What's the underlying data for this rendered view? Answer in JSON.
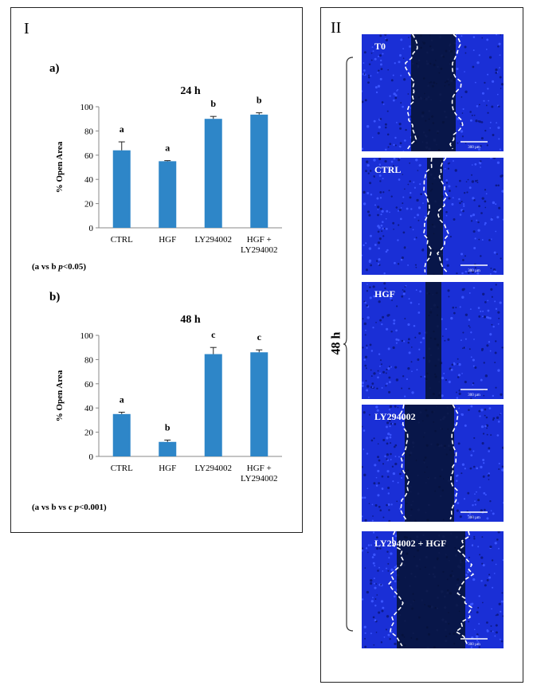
{
  "panel_I": {
    "label": "I",
    "sub_a": "a)",
    "sub_b": "b)",
    "note_a_prefix": "(a vs b ",
    "note_a_p": "p",
    "note_a_suffix": "<0.05)",
    "note_b_prefix": "(a vs b vs c ",
    "note_b_p": "p",
    "note_b_suffix": "<0.001)"
  },
  "panel_II": {
    "label": "II",
    "bracket_label": "48 h",
    "images": [
      {
        "label": "T0",
        "scale_text": "300 µm"
      },
      {
        "label": "CTRL",
        "scale_text": "300 µm"
      },
      {
        "label": "HGF",
        "scale_text": "300 µm"
      },
      {
        "label": "LY294002",
        "scale_text": "300 µm"
      },
      {
        "label": "LY294002 + HGF",
        "scale_text": "300 µm"
      }
    ]
  },
  "colors": {
    "bar": "#2e86c8",
    "micro_bg": "#1a2fd6",
    "micro_dark": "#061230"
  },
  "chart_data": [
    {
      "type": "bar",
      "title": "24 h",
      "ylabel": "% Open Area",
      "xlabel": "",
      "ylim": [
        0,
        100
      ],
      "yticks": [
        0,
        20,
        40,
        60,
        80,
        100
      ],
      "categories": [
        [
          "CTRL"
        ],
        [
          "HGF"
        ],
        [
          "LY294002"
        ],
        [
          "HGF +",
          "LY294002"
        ]
      ],
      "values": [
        64,
        55,
        90,
        93.5
      ],
      "errors": [
        7,
        0.5,
        2,
        1.5
      ],
      "letters": [
        "a",
        "a",
        "b",
        "b"
      ]
    },
    {
      "type": "bar",
      "title": "48 h",
      "ylabel": "% Open Area",
      "xlabel": "",
      "ylim": [
        0,
        100
      ],
      "yticks": [
        0,
        20,
        40,
        60,
        80,
        100
      ],
      "categories": [
        [
          "CTRL"
        ],
        [
          "HGF"
        ],
        [
          "LY294002"
        ],
        [
          "HGF +",
          "LY294002"
        ]
      ],
      "values": [
        35,
        12,
        84.5,
        86
      ],
      "errors": [
        1.5,
        1.5,
        5.5,
        2
      ],
      "letters": [
        "a",
        "b",
        "c",
        "c"
      ]
    }
  ]
}
